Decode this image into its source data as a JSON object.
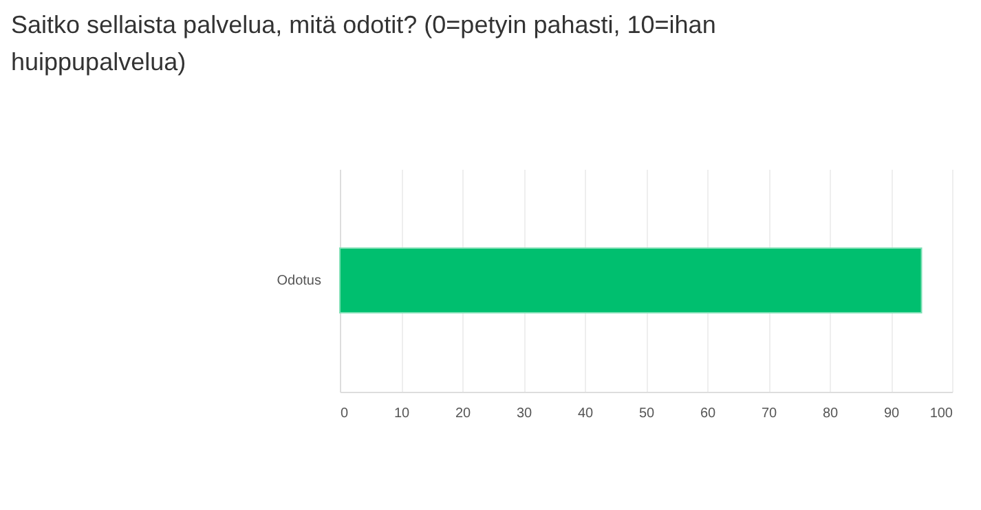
{
  "chart_data": {
    "type": "bar",
    "orientation": "horizontal",
    "title": "Saitko sellaista palvelua, mitä odotit? (0=petyin pahasti, 10=ihan huippupalvelua)",
    "categories": [
      "Odotus"
    ],
    "values": [
      95
    ],
    "color": "#00bf6f",
    "xlim": [
      0,
      100
    ],
    "xticks": [
      0,
      10,
      20,
      30,
      40,
      50,
      60,
      70,
      80,
      90,
      100
    ],
    "grid": "x"
  }
}
